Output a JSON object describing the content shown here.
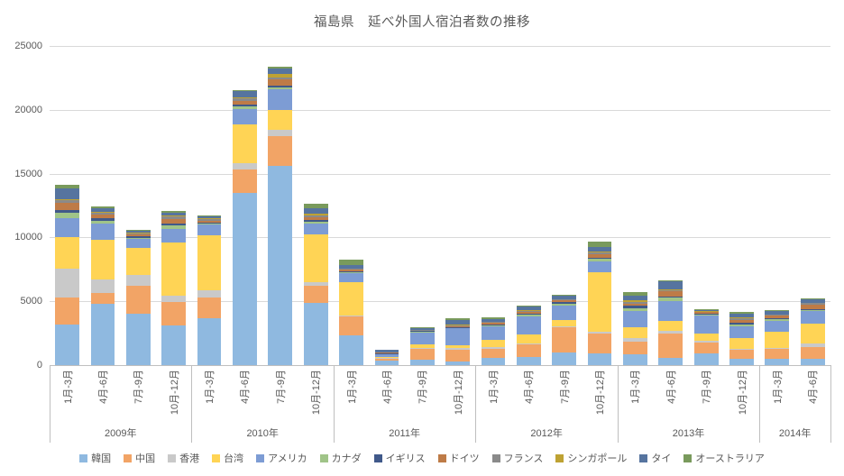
{
  "title": "福島県　延べ外国人宿泊者数の推移",
  "colors": {
    "background": "#FFFFFF",
    "text": "#595959",
    "gridline": "#D9D9D9",
    "axis_line": "#BFBFBF"
  },
  "chart_data": {
    "type": "bar",
    "stacked": true,
    "title": "福島県　延べ外国人宿泊者数の推移",
    "xlabel": "",
    "ylabel": "",
    "ylim": [
      0,
      25000
    ],
    "yticks": [
      0,
      5000,
      10000,
      15000,
      20000,
      25000
    ],
    "grid": true,
    "legend_position": "bottom",
    "groups": [
      {
        "year": "2009年",
        "quarters": [
          "1月-3月",
          "4月-6月",
          "7月-9月",
          "10月-12月"
        ]
      },
      {
        "year": "2010年",
        "quarters": [
          "1月-3月",
          "4月-6月",
          "7月-9月",
          "10月-12月"
        ]
      },
      {
        "year": "2011年",
        "quarters": [
          "1月-3月",
          "4月-6月",
          "7月-9月",
          "10月-12月"
        ]
      },
      {
        "year": "2012年",
        "quarters": [
          "1月-3月",
          "4月-6月",
          "7月-9月",
          "10月-12月"
        ]
      },
      {
        "year": "2013年",
        "quarters": [
          "1月-3月",
          "4月-6月",
          "7月-9月",
          "10月-12月"
        ]
      },
      {
        "year": "2014年",
        "quarters": [
          "1月-3月",
          "4月-6月"
        ]
      }
    ],
    "series": [
      {
        "name": "韓国",
        "color": "#8FB9E0",
        "values": [
          3180,
          4825,
          4000,
          3130,
          3690,
          13500,
          15600,
          4870,
          2310,
          330,
          400,
          300,
          540,
          650,
          1010,
          950,
          825,
          590,
          895,
          470,
          470,
          470
        ]
      },
      {
        "name": "中国",
        "color": "#F2A466",
        "values": [
          2120,
          825,
          2230,
          1835,
          1600,
          1815,
          2360,
          1320,
          1505,
          200,
          890,
          900,
          750,
          945,
          1975,
          1530,
          1010,
          1900,
          870,
          700,
          825,
          940
        ]
      },
      {
        "name": "香港",
        "color": "#C9C9C9",
        "values": [
          2240,
          1060,
          825,
          470,
          590,
          540,
          445,
          280,
          100,
          40,
          60,
          150,
          120,
          100,
          60,
          120,
          280,
          165,
          165,
          120,
          80,
          305
        ]
      },
      {
        "name": "台湾",
        "color": "#FFD455",
        "values": [
          2470,
          3130,
          2120,
          4165,
          4280,
          3000,
          1600,
          3765,
          2600,
          90,
          280,
          235,
          590,
          700,
          470,
          4710,
          825,
          780,
          545,
          825,
          1225,
          1510
        ]
      },
      {
        "name": "アメリカ",
        "color": "#7D9CD4",
        "values": [
          1505,
          1250,
          700,
          1080,
          825,
          1220,
          1595,
          825,
          700,
          200,
          940,
          1300,
          1060,
          1450,
          1130,
          825,
          1295,
          1600,
          1410,
          940,
          845,
          1010
        ]
      },
      {
        "name": "カナダ",
        "color": "#A0C488",
        "values": [
          400,
          235,
          120,
          235,
          100,
          180,
          165,
          150,
          80,
          20,
          30,
          30,
          40,
          100,
          190,
          190,
          235,
          235,
          60,
          120,
          165,
          60
        ]
      },
      {
        "name": "イギリス",
        "color": "#40598A",
        "values": [
          235,
          165,
          85,
          165,
          100,
          150,
          165,
          150,
          80,
          40,
          60,
          80,
          80,
          100,
          100,
          100,
          165,
          80,
          80,
          120,
          100,
          100
        ]
      },
      {
        "name": "ドイツ",
        "color": "#BE7B47",
        "values": [
          545,
          300,
          150,
          400,
          150,
          300,
          470,
          250,
          120,
          50,
          60,
          80,
          120,
          150,
          120,
          280,
          165,
          470,
          120,
          235,
          150,
          350
        ]
      },
      {
        "name": "フランス",
        "color": "#8A8A8A",
        "values": [
          235,
          165,
          100,
          165,
          100,
          200,
          150,
          150,
          60,
          40,
          40,
          50,
          80,
          80,
          80,
          140,
          165,
          60,
          60,
          120,
          80,
          100
        ]
      },
      {
        "name": "シンガポール",
        "color": "#BEA233",
        "values": [
          100,
          80,
          50,
          50,
          50,
          100,
          300,
          80,
          30,
          20,
          30,
          30,
          40,
          50,
          40,
          80,
          100,
          30,
          30,
          80,
          50,
          50
        ]
      },
      {
        "name": "タイ",
        "color": "#56749F",
        "values": [
          800,
          280,
          160,
          280,
          200,
          470,
          370,
          425,
          280,
          150,
          100,
          350,
          200,
          250,
          250,
          355,
          400,
          650,
          80,
          300,
          275,
          250
        ]
      },
      {
        "name": "オーストラリア",
        "color": "#799A5C",
        "values": [
          310,
          100,
          60,
          100,
          80,
          100,
          130,
          400,
          400,
          40,
          60,
          190,
          150,
          80,
          120,
          375,
          235,
          100,
          40,
          120,
          60,
          100
        ]
      }
    ]
  }
}
